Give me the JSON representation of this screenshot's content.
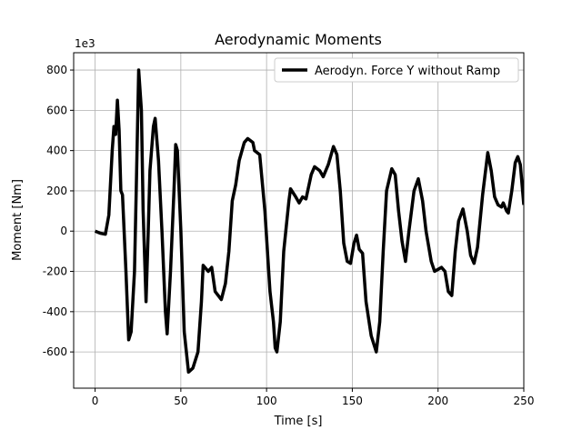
{
  "chart_data": {
    "type": "line",
    "title": "Aerodynamic Moments",
    "x_label": "Time [s]",
    "y_label": "Moment [Nm]",
    "y_offset_label": "1e3",
    "x": [
      0,
      3,
      6,
      8,
      10,
      11,
      12,
      13,
      14,
      15,
      16,
      18,
      19.6,
      21,
      23,
      24,
      25.4,
      27,
      28,
      29.7,
      31,
      32,
      34,
      35,
      37,
      39,
      41,
      42,
      44,
      46,
      47,
      48,
      50,
      52,
      54.5,
      57,
      60,
      62,
      63,
      66,
      68,
      70,
      73.6,
      76,
      78,
      80,
      82,
      84,
      87,
      89,
      92,
      93,
      96,
      99,
      102,
      104,
      105,
      106,
      108,
      110,
      113,
      114,
      117,
      119,
      121,
      123,
      126,
      128,
      131,
      133,
      136,
      139,
      141,
      143,
      145,
      147,
      149,
      151,
      152.5,
      154,
      156,
      158,
      161,
      164,
      166,
      168,
      170,
      173,
      175,
      177,
      179,
      181,
      183,
      186,
      188.5,
      191,
      193,
      196,
      198,
      200,
      202,
      204,
      206,
      208,
      210,
      212,
      214.5,
      217,
      219,
      221,
      223,
      226,
      229,
      231,
      233,
      235,
      237,
      238,
      240,
      241,
      243,
      245,
      246.5,
      248,
      250
    ],
    "series": [
      {
        "name": "Aerodyn. Force Y without Ramp",
        "color": "#000000",
        "values": [
          0,
          -10,
          -15,
          80,
          400,
          520,
          480,
          650,
          500,
          200,
          180,
          -200,
          -540,
          -500,
          -200,
          200,
          800,
          600,
          100,
          -350,
          0,
          300,
          520,
          560,
          350,
          0,
          -400,
          -510,
          -200,
          200,
          430,
          400,
          0,
          -500,
          -700,
          -680,
          -600,
          -350,
          -170,
          -200,
          -180,
          -300,
          -340,
          -260,
          -100,
          150,
          230,
          350,
          440,
          460,
          440,
          400,
          380,
          100,
          -300,
          -450,
          -580,
          -600,
          -450,
          -100,
          150,
          210,
          170,
          140,
          170,
          160,
          280,
          320,
          300,
          270,
          330,
          420,
          380,
          200,
          -60,
          -150,
          -160,
          -60,
          -20,
          -90,
          -110,
          -350,
          -520,
          -600,
          -450,
          -100,
          200,
          310,
          280,
          100,
          -50,
          -150,
          0,
          200,
          260,
          150,
          0,
          -150,
          -200,
          -190,
          -180,
          -200,
          -300,
          -320,
          -100,
          50,
          110,
          0,
          -120,
          -160,
          -80,
          180,
          390,
          300,
          170,
          130,
          120,
          140,
          100,
          90,
          200,
          340,
          370,
          330,
          130
        ]
      }
    ],
    "xlim": [
      -12.5,
      250
    ],
    "ylim": [
      -780,
      886
    ],
    "xticks": [
      0,
      50,
      100,
      150,
      200,
      250
    ],
    "yticks": [
      -600,
      -400,
      -200,
      0,
      200,
      400,
      600,
      800
    ],
    "grid": true,
    "legend": "upper right"
  }
}
